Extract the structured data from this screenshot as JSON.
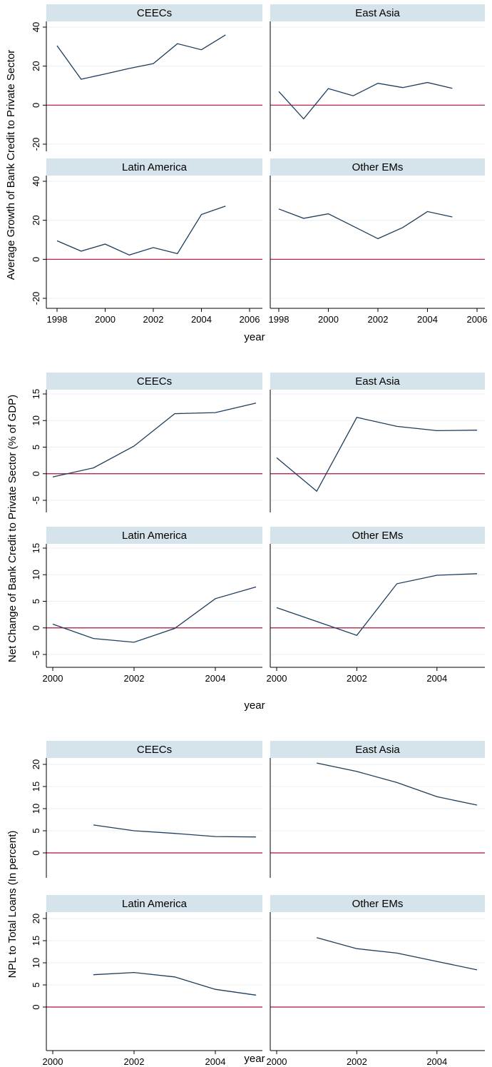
{
  "colors": {
    "series": "#1d3d5c",
    "reference": "#b0103a",
    "strip": "#d5e3ea",
    "grid": "#eaf0f2"
  },
  "chart_data": [
    {
      "type": "line",
      "ylabel": "Average Growth of Bank Credit to Private Sector",
      "xlabel": "year",
      "xlim": [
        1998,
        2006
      ],
      "ylim": [
        -20,
        40
      ],
      "xticks": [
        1998,
        2000,
        2002,
        2004,
        2006
      ],
      "yticks": [
        -20,
        0,
        20,
        40
      ],
      "reference_line": 0,
      "grid": true,
      "panels": [
        {
          "name": "CEECs",
          "x": [
            1998,
            1999,
            2000,
            2001,
            2002,
            2003,
            2004,
            2005
          ],
          "y": [
            30.5,
            13.3,
            16.0,
            18.8,
            21.3,
            31.5,
            28.4,
            36.0
          ]
        },
        {
          "name": "East Asia",
          "x": [
            1998,
            1999,
            2000,
            2001,
            2002,
            2003,
            2004,
            2005
          ],
          "y": [
            7.0,
            -7.0,
            8.5,
            4.8,
            11.2,
            9.0,
            11.6,
            8.6
          ]
        },
        {
          "name": "Latin America",
          "x": [
            1998,
            1999,
            2000,
            2001,
            2002,
            2003,
            2004,
            2005
          ],
          "y": [
            9.5,
            4.2,
            7.8,
            2.2,
            6.0,
            2.9,
            23.0,
            27.3
          ]
        },
        {
          "name": "Other EMs",
          "x": [
            1998,
            1999,
            2000,
            2001,
            2002,
            2003,
            2004,
            2005
          ],
          "y": [
            25.8,
            21.0,
            23.3,
            17.0,
            10.6,
            16.3,
            24.5,
            21.7
          ]
        }
      ]
    },
    {
      "type": "line",
      "ylabel": "Net Change of Bank Credit to Private Sector (% of GDP)",
      "xlabel": "year",
      "xlim": [
        2000,
        2005
      ],
      "ylim": [
        -5,
        15
      ],
      "xticks": [
        2000,
        2002,
        2004
      ],
      "yticks": [
        -5,
        0,
        5,
        10,
        15
      ],
      "reference_line": 0,
      "grid": true,
      "panels": [
        {
          "name": "CEECs",
          "x": [
            2000,
            2001,
            2002,
            2003,
            2004,
            2005
          ],
          "y": [
            -0.6,
            1.1,
            5.2,
            11.3,
            11.5,
            13.3
          ]
        },
        {
          "name": "East Asia",
          "x": [
            2000,
            2001,
            2002,
            2003,
            2004,
            2005
          ],
          "y": [
            3.0,
            -3.3,
            10.6,
            8.9,
            8.1,
            8.2
          ]
        },
        {
          "name": "Latin America",
          "x": [
            2000,
            2001,
            2002,
            2003,
            2004,
            2005
          ],
          "y": [
            0.7,
            -2.0,
            -2.7,
            -0.1,
            5.5,
            7.7
          ]
        },
        {
          "name": "Other EMs",
          "x": [
            2000,
            2001,
            2002,
            2003,
            2004,
            2005
          ],
          "y": [
            3.8,
            1.2,
            -1.4,
            8.3,
            9.9,
            10.2
          ]
        }
      ]
    },
    {
      "type": "line",
      "ylabel": "NPL to Total Loans (In percent)",
      "xlabel": "year",
      "xlim": [
        2000,
        2005
      ],
      "ylim": [
        0,
        20
      ],
      "xticks": [
        2000,
        2002,
        2004
      ],
      "yticks": [
        0,
        5,
        10,
        15,
        20
      ],
      "reference_line": 0,
      "grid": true,
      "panels": [
        {
          "name": "CEECs",
          "x": [
            2001,
            2002,
            2003,
            2004,
            2005
          ],
          "y": [
            6.3,
            5.0,
            4.4,
            3.7,
            3.6
          ]
        },
        {
          "name": "East Asia",
          "x": [
            2001,
            2002,
            2003,
            2004,
            2005
          ],
          "y": [
            20.3,
            18.4,
            15.9,
            12.7,
            10.8
          ]
        },
        {
          "name": "Latin America",
          "x": [
            2001,
            2002,
            2003,
            2004,
            2005
          ],
          "y": [
            7.3,
            7.8,
            6.8,
            4.0,
            2.7
          ]
        },
        {
          "name": "Other EMs",
          "x": [
            2001,
            2002,
            2003,
            2004,
            2005
          ],
          "y": [
            15.7,
            13.2,
            12.2,
            10.3,
            8.4
          ]
        }
      ]
    }
  ]
}
